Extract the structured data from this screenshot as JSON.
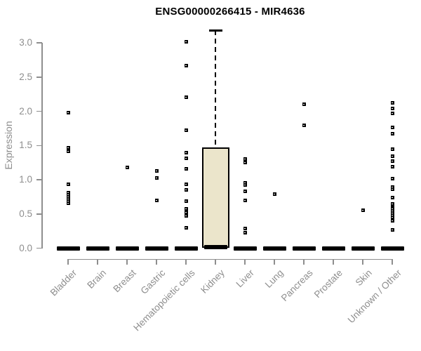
{
  "title": "ENSG00000266415 - MIR4636",
  "colors": {
    "axis": "#8E8E8E",
    "tick_label": "#8E8E8E",
    "title_color": "#000000",
    "point": "#000000",
    "box_fill": "#EBE5CB",
    "box_border": "#000000",
    "background": "#FFFFFF"
  },
  "chart_data": {
    "type": "box-scatter",
    "title": "ENSG00000266415 - MIR4636",
    "xlabel": "",
    "ylabel": "Expression",
    "ylim": [
      0.0,
      3.2
    ],
    "y_ticks": [
      "0.0",
      "0.5",
      "1.0",
      "1.5",
      "2.0",
      "2.5",
      "3.0"
    ],
    "grid": false,
    "legend": "none",
    "categories": [
      "Bladder",
      "Brain",
      "Breast",
      "Gastric",
      "Hematopoietic cells",
      "Kidney",
      "Liver",
      "Lung",
      "Pancreas",
      "Prostate",
      "Skin",
      "Unknown / Other"
    ],
    "series": [
      {
        "name": "Bladder",
        "median": 0.0,
        "points": [
          1.98,
          1.47,
          1.42,
          0.93,
          0.81,
          0.78,
          0.75,
          0.72,
          0.69,
          0.66
        ]
      },
      {
        "name": "Brain",
        "median": 0.0,
        "points": []
      },
      {
        "name": "Breast",
        "median": 0.0,
        "points": [
          1.18
        ]
      },
      {
        "name": "Gastric",
        "median": 0.0,
        "points": [
          1.13,
          1.03,
          0.7
        ]
      },
      {
        "name": "Hematopoietic cells",
        "median": 0.0,
        "points": [
          3.02,
          2.67,
          2.21,
          1.72,
          1.39,
          1.31,
          1.16,
          0.93,
          0.85,
          0.69,
          0.57,
          0.52,
          0.47,
          0.3
        ]
      },
      {
        "name": "Kidney",
        "median": 0.02,
        "points": [],
        "box": {
          "q1": 0.0,
          "q3": 1.47,
          "whisker_low": 0.0,
          "whisker_high": 3.18
        }
      },
      {
        "name": "Liver",
        "median": 0.0,
        "points": [
          1.3,
          1.25,
          0.95,
          0.92,
          0.83,
          0.7,
          0.29,
          0.23
        ]
      },
      {
        "name": "Lung",
        "median": 0.0,
        "points": [
          0.79
        ]
      },
      {
        "name": "Pancreas",
        "median": 0.0,
        "points": [
          2.1,
          1.79
        ]
      },
      {
        "name": "Prostate",
        "median": 0.0,
        "points": []
      },
      {
        "name": "Skin",
        "median": 0.0,
        "points": [
          0.55
        ]
      },
      {
        "name": "Unknown / Other",
        "median": 0.0,
        "points": [
          2.12,
          2.04,
          1.97,
          1.76,
          1.67,
          1.45,
          1.34,
          1.27,
          1.19,
          1.02,
          0.89,
          0.86,
          0.74,
          0.65,
          0.62,
          0.59,
          0.57,
          0.54,
          0.51,
          0.48,
          0.45,
          0.42,
          0.4,
          0.27
        ]
      }
    ]
  }
}
